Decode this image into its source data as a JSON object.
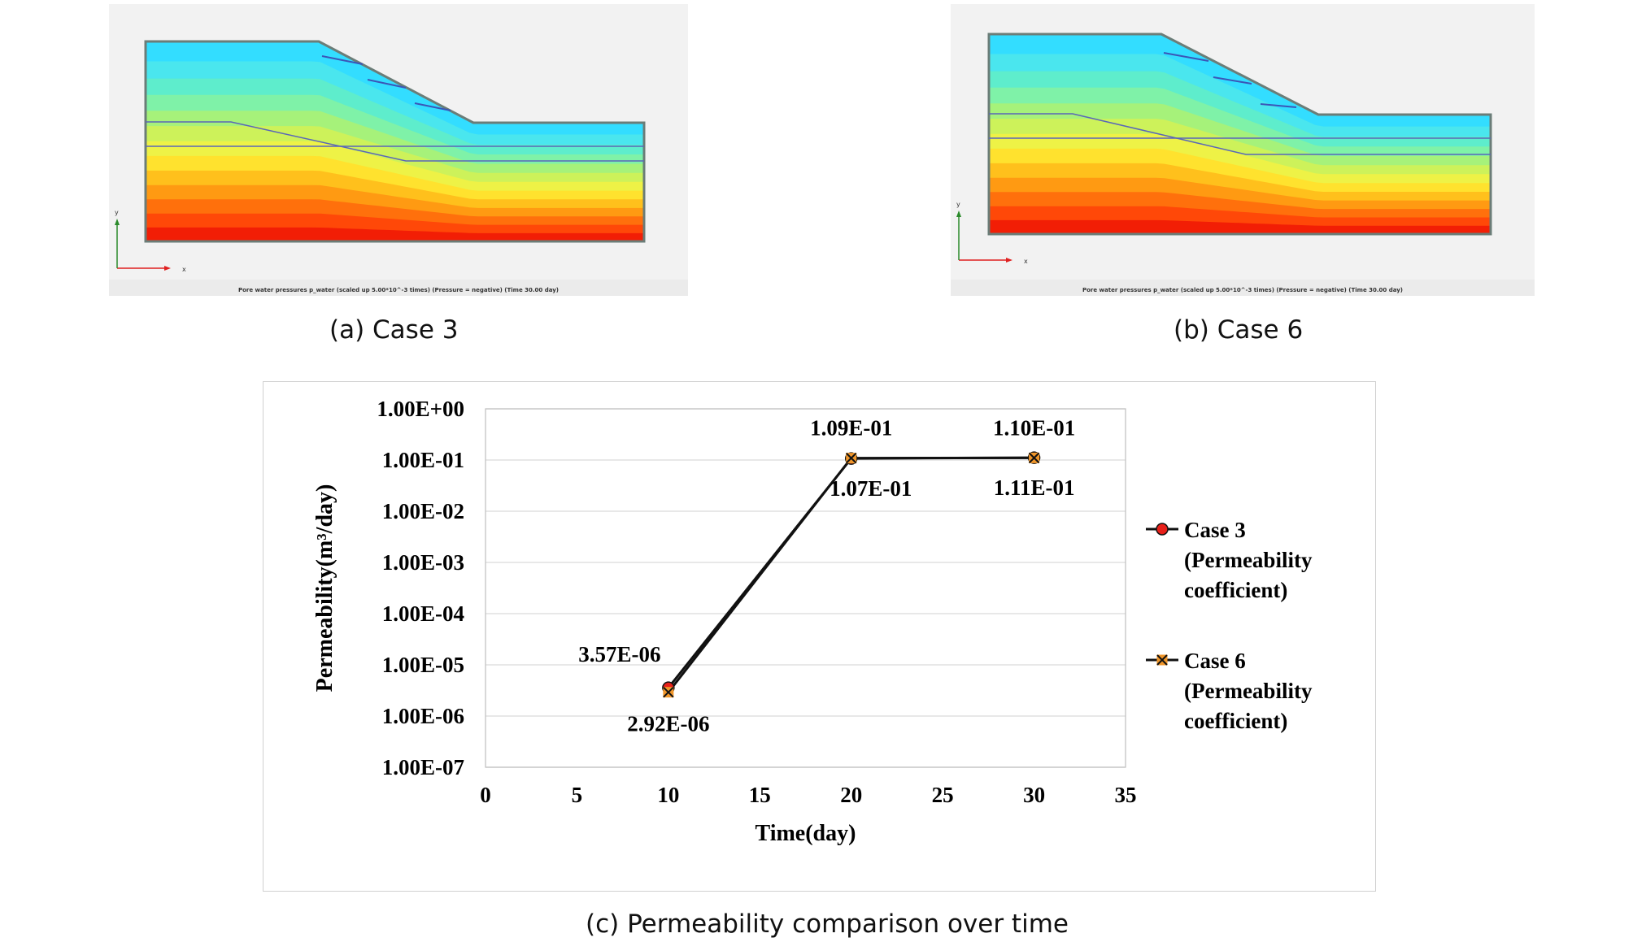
{
  "panels": [
    {
      "id": "a",
      "caption": "(a)  Case  3",
      "legend_caption": "Pore water pressures p_water (scaled up 5.00*10^-3 times) (Pressure = negative) (Time 30.00 day)",
      "axis_x": "x",
      "axis_y": "y"
    },
    {
      "id": "b",
      "caption": "(b)  Case  6",
      "legend_caption": "Pore water pressures p_water (scaled up 5.00*10^-3 times) (Pressure = negative) (Time 30.00 day)",
      "axis_x": "x",
      "axis_y": "y"
    }
  ],
  "figure_caption": "(c)  Permeability  comparison  over  time",
  "colors": {
    "contour": [
      "#33ddff",
      "#4ae6ee",
      "#5eedcc",
      "#7ff2a8",
      "#a6f27a",
      "#cdf25a",
      "#eef246",
      "#ffe22e",
      "#ffc01c",
      "#ff9a12",
      "#ff700c",
      "#ff4808",
      "#f21e05"
    ],
    "case3_marker": "#e8201a",
    "case6_marker": "#f0962a",
    "line": "#111111",
    "grid": "#d9d9d9"
  },
  "chart_data": {
    "type": "line",
    "xlabel": "Time(day)",
    "ylabel": "Permeability(m³/day)",
    "x_ticks": [
      "0",
      "5",
      "10",
      "15",
      "20",
      "25",
      "30",
      "35"
    ],
    "y_ticks": [
      "1.00E+00",
      "1.00E-01",
      "1.00E-02",
      "1.00E-03",
      "1.00E-04",
      "1.00E-05",
      "1.00E-06",
      "1.00E-07"
    ],
    "xlim": [
      0,
      35
    ],
    "ylim": [
      1e-07,
      1
    ],
    "y_scale": "log",
    "grid": true,
    "legend_position": "right",
    "series": [
      {
        "name": "Case 3 (Permeability coefficient)",
        "legend_lines": [
          "Case 3",
          "(Permeability",
          "coefficient)"
        ],
        "marker": "circle",
        "points": [
          {
            "x": 10,
            "y": 3.57e-06,
            "label": "3.57E-06"
          },
          {
            "x": 20,
            "y": 0.107,
            "label": "1.07E-01"
          },
          {
            "x": 30,
            "y": 0.111,
            "label": "1.11E-01"
          }
        ]
      },
      {
        "name": "Case 6 (Permeability coefficient)",
        "legend_lines": [
          "Case 6",
          "(Permeability",
          "coefficient)"
        ],
        "marker": "x",
        "points": [
          {
            "x": 10,
            "y": 2.92e-06,
            "label": "2.92E-06"
          },
          {
            "x": 20,
            "y": 0.109,
            "label": "1.09E-01"
          },
          {
            "x": 30,
            "y": 0.11,
            "label": "1.10E-01"
          }
        ]
      }
    ]
  }
}
